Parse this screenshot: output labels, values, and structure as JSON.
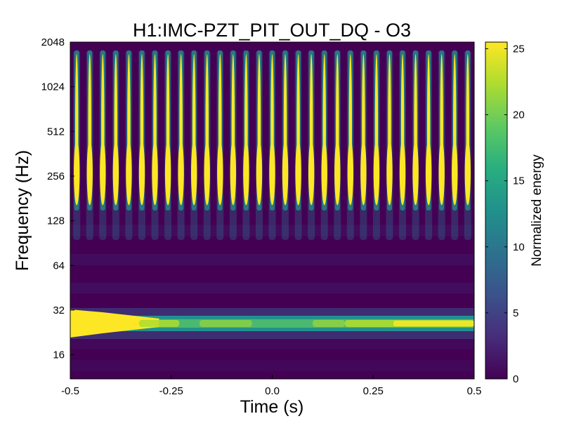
{
  "chart_data": {
    "type": "heatmap",
    "title": "H1:IMC-PZT_PIT_OUT_DQ - O3",
    "xlabel": "Time (s)",
    "ylabel": "Frequency (Hz)",
    "xlim": [
      -0.5,
      0.5
    ],
    "ylim": [
      11,
      2048
    ],
    "yscale": "log2",
    "x_ticks": [
      -0.5,
      -0.25,
      0.0,
      0.25,
      0.5
    ],
    "x_tick_labels": [
      "-0.5",
      "-0.25",
      "0.0",
      "0.25",
      "0.5"
    ],
    "y_ticks": [
      16,
      32,
      64,
      128,
      256,
      512,
      1024,
      2048
    ],
    "y_tick_labels": [
      "16",
      "32",
      "64",
      "128",
      "256",
      "512",
      "1024",
      "2048"
    ],
    "grid": false,
    "colormap": "viridis",
    "colorbar": {
      "label": "Normalized energy",
      "range": [
        0,
        25.5
      ],
      "ticks": [
        0,
        5,
        10,
        15,
        20,
        25
      ],
      "tick_labels": [
        "0",
        "5",
        "10",
        "15",
        "20",
        "25"
      ]
    },
    "features": {
      "spikes": {
        "count": 31,
        "time_start": -0.484,
        "time_end": 0.484,
        "freq_low": 175,
        "freq_high": 1700,
        "peak_energy": 25.5
      },
      "line": {
        "freq": 26,
        "energy_at_start": 25.5,
        "energy_mid": 13,
        "energy_at_end": 24
      }
    }
  }
}
